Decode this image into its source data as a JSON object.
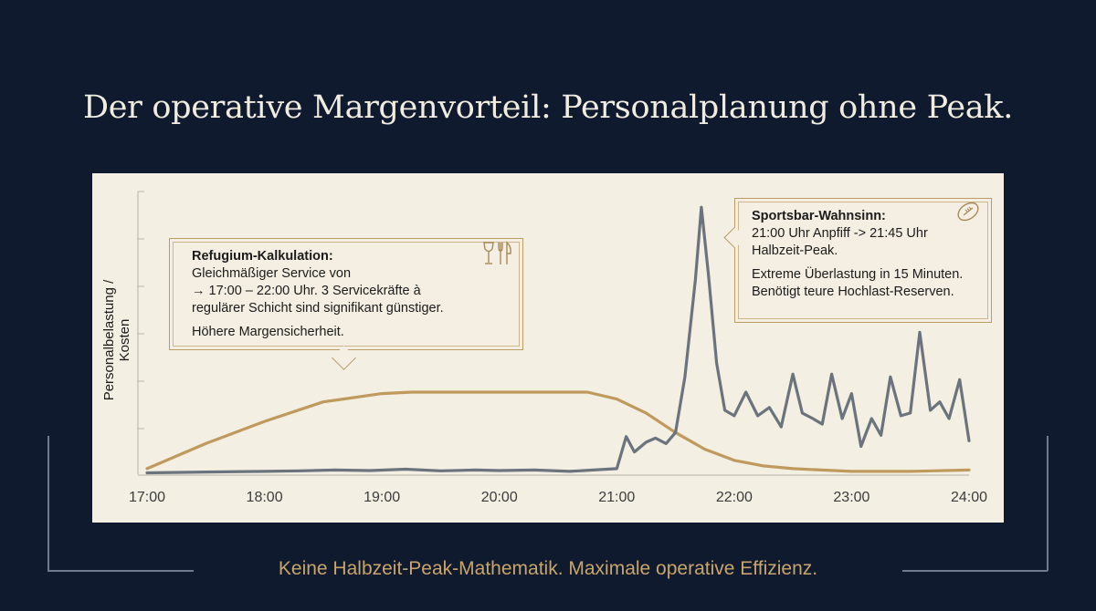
{
  "slide": {
    "title": "Der operative Margenvorteil: Personalplanung ohne Peak.",
    "footer": "Keine Halbzeit-Peak-Mathematik. Maximale operative Effizienz."
  },
  "colors": {
    "background": "#0f1a2e",
    "panel": "#f3efe3",
    "gold": "#c8a56b",
    "refugium_line": "#bf9a5c",
    "sportsbar_line": "#6b737d"
  },
  "callouts": {
    "refugium": {
      "heading": "Refugium-Kalkulation:",
      "line1": "Gleichmäßiger Service von",
      "line2": "→ 17:00 – 22:00 Uhr. 3 Servicekräfte à",
      "line3": "regulärer Schicht sind signifikant günstiger.",
      "line4": "Höhere Margensicherheit.",
      "icon": "wine-glass-cutlery-icon"
    },
    "sportsbar": {
      "heading": "Sportsbar-Wahnsinn:",
      "line1": "21:00 Uhr Anpfiff -> 21:45 Uhr",
      "line2": "Halbzeit-Peak.",
      "line3": "Extreme Überlastung in 15 Minuten.",
      "line4": "Benötigt teure Hochlast-Reserven.",
      "icon": "football-icon"
    }
  },
  "chart_data": {
    "type": "line",
    "title": "",
    "xlabel": "",
    "ylabel": "Personalbelastung / Kosten",
    "x_ticks": [
      "17:00",
      "18:00",
      "19:00",
      "20:00",
      "21:00",
      "22:00",
      "23:00",
      "24:00"
    ],
    "xlim": [
      17,
      24
    ],
    "ylim": [
      0,
      100
    ],
    "grid": false,
    "series": [
      {
        "key": "refugium",
        "x": [
          17.0,
          17.5,
          18.0,
          18.5,
          19.0,
          19.25,
          19.5,
          20.0,
          20.5,
          20.75,
          21.0,
          21.25,
          21.5,
          21.75,
          22.0,
          22.25,
          22.5,
          23.0,
          23.5,
          24.0
        ],
        "y": [
          2,
          11,
          19,
          26,
          29,
          29.5,
          29.5,
          29.5,
          29.5,
          29.5,
          27,
          22,
          15,
          9,
          5,
          3,
          2,
          1,
          1,
          1.5
        ]
      },
      {
        "key": "sportsbar",
        "x": [
          17.0,
          17.5,
          18.0,
          18.3,
          18.6,
          18.9,
          19.2,
          19.5,
          19.8,
          20.0,
          20.3,
          20.6,
          20.8,
          21.0,
          21.08,
          21.15,
          21.25,
          21.33,
          21.42,
          21.5,
          21.58,
          21.67,
          21.72,
          21.78,
          21.85,
          21.92,
          22.0,
          22.1,
          22.2,
          22.3,
          22.4,
          22.5,
          22.58,
          22.67,
          22.75,
          22.83,
          22.92,
          23.0,
          23.08,
          23.17,
          23.25,
          23.33,
          23.42,
          23.5,
          23.58,
          23.67,
          23.75,
          23.83,
          23.92,
          24.0
        ],
        "y": [
          0.5,
          0.8,
          1,
          1.2,
          1.5,
          1.3,
          1.8,
          1.2,
          1.5,
          1.3,
          1.5,
          1,
          1.5,
          2,
          13.5,
          8,
          11.5,
          13,
          11,
          15,
          35,
          70,
          96,
          72,
          40,
          23,
          21,
          29.5,
          21,
          24,
          17,
          36,
          22,
          20,
          18,
          36,
          20,
          29,
          10,
          20,
          14,
          35,
          21,
          22,
          51,
          23,
          26,
          20,
          34,
          12
        ]
      }
    ]
  }
}
